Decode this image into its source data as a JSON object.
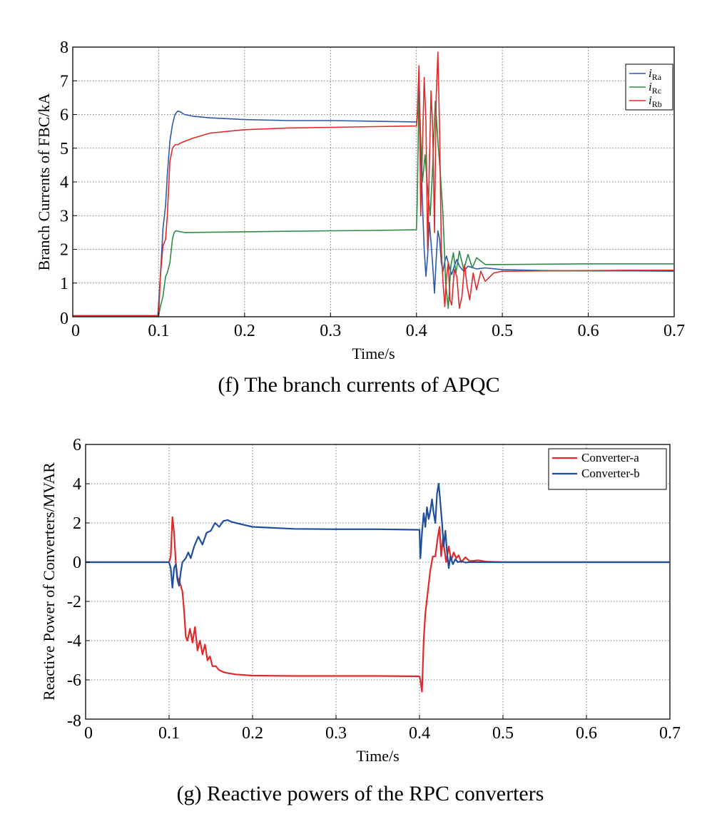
{
  "chart_data": [
    {
      "type": "line",
      "caption": "(f) The branch currents of APQC",
      "xlabel": "Time/s",
      "ylabel": "Branch Currents of FBC/kA",
      "xlim": [
        0,
        0.7
      ],
      "ylim": [
        0,
        8
      ],
      "xticks": [
        0,
        0.1,
        0.2,
        0.3,
        0.4,
        0.5,
        0.6,
        0.7
      ],
      "xtick_labels": [
        "0",
        "0.1",
        "0.2",
        "0.3",
        "0.4",
        "0.5",
        "0.6",
        "0.7"
      ],
      "yticks": [
        0,
        1,
        2,
        3,
        4,
        5,
        6,
        7,
        8
      ],
      "ytick_labels": [
        "0",
        "1",
        "2",
        "3",
        "4",
        "5",
        "6",
        "7",
        "8"
      ],
      "grid": true,
      "legend_position": "top-right",
      "series": [
        {
          "name": "i",
          "subscript": "Ra",
          "color": "#2a5ba8",
          "line_width": 1.6,
          "x": [
            0,
            0.099,
            0.102,
            0.105,
            0.108,
            0.11,
            0.113,
            0.116,
            0.119,
            0.122,
            0.125,
            0.13,
            0.14,
            0.16,
            0.2,
            0.25,
            0.3,
            0.35,
            0.4,
            0.401,
            0.403,
            0.405,
            0.407,
            0.409,
            0.411,
            0.413,
            0.415,
            0.417,
            0.419,
            0.421,
            0.423,
            0.425,
            0.427,
            0.429,
            0.431,
            0.433,
            0.435,
            0.438,
            0.441,
            0.444,
            0.447,
            0.45,
            0.455,
            0.46,
            0.47,
            0.48,
            0.5,
            0.55,
            0.6,
            0.65,
            0.7
          ],
          "y": [
            0.03,
            0.03,
            1.2,
            2.6,
            3.3,
            4.2,
            5.2,
            5.7,
            6.0,
            6.1,
            6.08,
            6.0,
            5.95,
            5.9,
            5.85,
            5.82,
            5.82,
            5.8,
            5.78,
            5.9,
            7.3,
            5.0,
            3.4,
            2.0,
            1.2,
            1.8,
            2.8,
            2.2,
            1.5,
            0.7,
            1.7,
            2.55,
            2.3,
            1.6,
            1.35,
            1.65,
            1.8,
            1.5,
            1.25,
            1.5,
            1.7,
            1.5,
            1.35,
            1.5,
            1.42,
            1.45,
            1.4,
            1.37,
            1.36,
            1.36,
            1.35
          ]
        },
        {
          "name": "i",
          "subscript": "Rc",
          "color": "#2e8b45",
          "line_width": 1.6,
          "x": [
            0,
            0.1,
            0.102,
            0.105,
            0.108,
            0.11,
            0.113,
            0.116,
            0.118,
            0.12,
            0.13,
            0.2,
            0.3,
            0.35,
            0.4,
            0.401,
            0.403,
            0.405,
            0.407,
            0.41,
            0.413,
            0.416,
            0.419,
            0.422,
            0.425,
            0.428,
            0.431,
            0.434,
            0.437,
            0.44,
            0.443,
            0.446,
            0.45,
            0.455,
            0.46,
            0.465,
            0.47,
            0.48,
            0.5,
            0.55,
            0.6,
            0.65,
            0.7
          ],
          "y": [
            0.03,
            0.03,
            0.3,
            0.6,
            1.2,
            1.3,
            1.6,
            2.3,
            2.5,
            2.55,
            2.5,
            2.52,
            2.55,
            2.56,
            2.58,
            3.5,
            6.7,
            5.3,
            4.0,
            4.8,
            3.8,
            3.0,
            4.5,
            6.4,
            5.2,
            4.2,
            3.0,
            1.0,
            0.25,
            1.5,
            1.9,
            1.3,
            1.95,
            1.4,
            1.85,
            1.45,
            1.75,
            1.55,
            1.55,
            1.56,
            1.57,
            1.57,
            1.57
          ]
        },
        {
          "name": "i",
          "subscript": "Rb",
          "color": "#e02a2a",
          "line_width": 1.6,
          "x": [
            0,
            0.1,
            0.102,
            0.105,
            0.108,
            0.11,
            0.113,
            0.116,
            0.119,
            0.122,
            0.125,
            0.13,
            0.14,
            0.16,
            0.2,
            0.25,
            0.3,
            0.35,
            0.4,
            0.401,
            0.403,
            0.405,
            0.407,
            0.409,
            0.411,
            0.413,
            0.415,
            0.417,
            0.419,
            0.421,
            0.423,
            0.425,
            0.427,
            0.429,
            0.431,
            0.433,
            0.435,
            0.437,
            0.439,
            0.441,
            0.444,
            0.447,
            0.45,
            0.453,
            0.456,
            0.459,
            0.462,
            0.466,
            0.47,
            0.475,
            0.48,
            0.49,
            0.5,
            0.55,
            0.6,
            0.65,
            0.7
          ],
          "y": [
            0.03,
            0.03,
            1.2,
            2.1,
            2.3,
            3.0,
            4.6,
            5.0,
            5.1,
            5.1,
            5.15,
            5.2,
            5.3,
            5.45,
            5.55,
            5.6,
            5.62,
            5.64,
            5.66,
            6.0,
            7.45,
            3.0,
            5.0,
            7.1,
            5.8,
            2.0,
            4.5,
            6.7,
            5.5,
            2.5,
            6.5,
            7.85,
            5.5,
            2.0,
            1.0,
            0.3,
            1.2,
            1.6,
            0.5,
            0.35,
            1.4,
            1.2,
            0.25,
            0.6,
            1.55,
            0.9,
            0.5,
            1.3,
            0.8,
            1.35,
            1.05,
            1.3,
            1.35,
            1.36,
            1.37,
            1.38,
            1.38
          ]
        }
      ]
    },
    {
      "type": "line",
      "caption": "(g) Reactive powers of the RPC converters",
      "xlabel": "Time/s",
      "ylabel": "Reactive Power of Converters/MVAR",
      "xlim": [
        0,
        0.7
      ],
      "ylim": [
        -8,
        6
      ],
      "xticks": [
        0,
        0.1,
        0.2,
        0.3,
        0.4,
        0.5,
        0.6,
        0.7
      ],
      "xtick_labels": [
        "0",
        "0.1",
        "0.2",
        "0.3",
        "0.4",
        "0.5",
        "0.6",
        "0.7"
      ],
      "yticks": [
        -8,
        -6,
        -4,
        -2,
        0,
        2,
        4,
        6
      ],
      "ytick_labels": [
        "-8",
        "-6",
        "-4",
        "-2",
        "0",
        "2",
        "4",
        "6"
      ],
      "grid": true,
      "legend_position": "top-right",
      "series": [
        {
          "name": "Converter-a",
          "color": "#e02a2a",
          "line_width": 2.2,
          "x": [
            0,
            0.1,
            0.102,
            0.104,
            0.106,
            0.108,
            0.11,
            0.112,
            0.114,
            0.116,
            0.118,
            0.12,
            0.122,
            0.125,
            0.128,
            0.131,
            0.134,
            0.137,
            0.14,
            0.143,
            0.146,
            0.149,
            0.152,
            0.156,
            0.16,
            0.165,
            0.17,
            0.18,
            0.2,
            0.25,
            0.3,
            0.35,
            0.4,
            0.401,
            0.403,
            0.405,
            0.407,
            0.41,
            0.413,
            0.416,
            0.419,
            0.422,
            0.424,
            0.426,
            0.428,
            0.43,
            0.432,
            0.435,
            0.438,
            0.441,
            0.444,
            0.447,
            0.45,
            0.455,
            0.46,
            0.47,
            0.48,
            0.5,
            0.6,
            0.7
          ],
          "y": [
            0,
            0,
            0.3,
            2.3,
            1.5,
            0.0,
            -0.8,
            -0.9,
            -1.2,
            -1.5,
            -2.5,
            -3.8,
            -4.0,
            -3.4,
            -4.1,
            -3.3,
            -4.5,
            -4.0,
            -4.7,
            -4.2,
            -5.0,
            -4.8,
            -5.3,
            -5.3,
            -5.5,
            -5.6,
            -5.65,
            -5.72,
            -5.78,
            -5.8,
            -5.8,
            -5.8,
            -5.82,
            -6.0,
            -6.6,
            -4.0,
            -2.6,
            -1.5,
            -0.4,
            0.3,
            0.3,
            1.3,
            1.8,
            0.3,
            1.2,
            0.6,
            0.0,
            0.8,
            0.1,
            0.5,
            0.2,
            0.35,
            0.0,
            0.25,
            0.05,
            0.1,
            0.03,
            0.0,
            0.0,
            0.0
          ]
        },
        {
          "name": "Converter-b",
          "color": "#1f4e9c",
          "line_width": 2.2,
          "x": [
            0,
            0.1,
            0.102,
            0.104,
            0.106,
            0.108,
            0.11,
            0.112,
            0.114,
            0.116,
            0.118,
            0.12,
            0.123,
            0.126,
            0.13,
            0.135,
            0.14,
            0.145,
            0.15,
            0.155,
            0.16,
            0.165,
            0.17,
            0.175,
            0.18,
            0.19,
            0.2,
            0.25,
            0.3,
            0.35,
            0.4,
            0.401,
            0.403,
            0.405,
            0.407,
            0.409,
            0.411,
            0.413,
            0.415,
            0.417,
            0.419,
            0.421,
            0.423,
            0.425,
            0.427,
            0.429,
            0.431,
            0.433,
            0.435,
            0.437,
            0.44,
            0.443,
            0.446,
            0.45,
            0.455,
            0.46,
            0.47,
            0.48,
            0.5,
            0.6,
            0.7
          ],
          "y": [
            0,
            0,
            -0.3,
            -1.3,
            -0.3,
            -0.1,
            -0.9,
            -1.2,
            -0.5,
            0.0,
            0.1,
            0.2,
            0.5,
            0.2,
            0.8,
            1.3,
            0.9,
            1.5,
            1.6,
            2.0,
            1.8,
            2.1,
            2.15,
            2.05,
            2.0,
            1.9,
            1.8,
            1.7,
            1.68,
            1.68,
            1.65,
            0.2,
            1.5,
            2.5,
            1.8,
            2.8,
            2.2,
            2.6,
            3.2,
            2.5,
            2.0,
            3.5,
            4.0,
            3.0,
            2.0,
            0.8,
            1.6,
            0.5,
            -0.3,
            0.3,
            -0.1,
            0.15,
            0.0,
            0.05,
            -0.02,
            0.0,
            0.0,
            0.0,
            0.0,
            0.0,
            0.0
          ]
        }
      ]
    }
  ]
}
